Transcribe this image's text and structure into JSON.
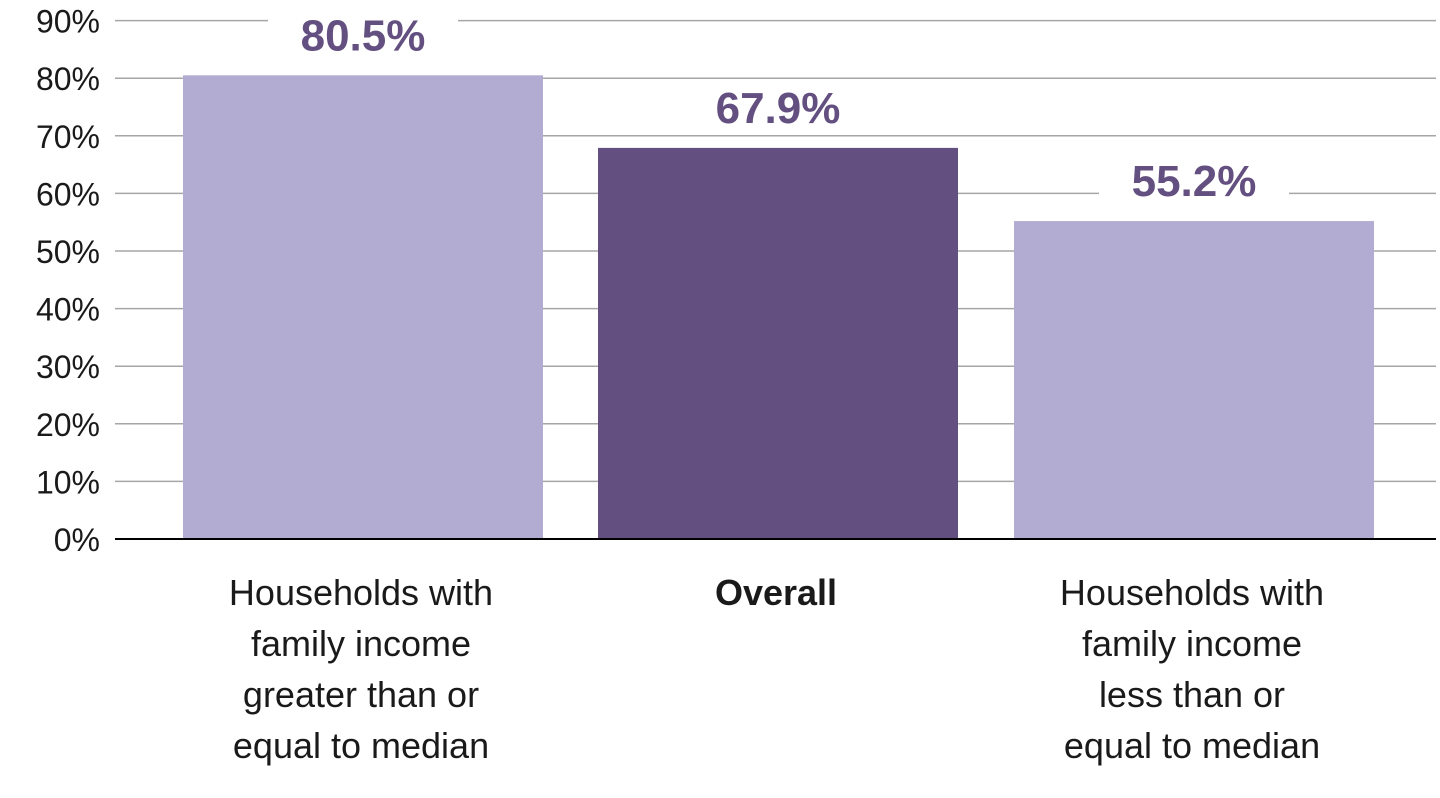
{
  "chart_data": {
    "type": "bar",
    "title": "",
    "xlabel": "",
    "ylabel": "",
    "ylim": [
      0,
      90
    ],
    "y_ticks": [
      0,
      10,
      20,
      30,
      40,
      50,
      60,
      70,
      80,
      90
    ],
    "y_tick_labels": [
      "0%",
      "10%",
      "20%",
      "30%",
      "40%",
      "50%",
      "60%",
      "70%",
      "80%",
      "90%"
    ],
    "grid": true,
    "legend": "none",
    "categories": [
      [
        "Households with",
        "family income",
        "greater than or",
        "equal to median"
      ],
      [
        "Overall"
      ],
      [
        "Households with",
        "family income",
        "less than or",
        "equal to median"
      ]
    ],
    "values": [
      80.5,
      67.9,
      55.2
    ],
    "data_labels": [
      "80.5%",
      "67.9%",
      "55.2%"
    ],
    "highlight_index": 1
  },
  "colors": {
    "bar_default": "#b2acd3",
    "bar_highlight": "#634f80",
    "data_label": "#634f80",
    "gridline": "#a6a6a6",
    "axis": "#000000"
  }
}
